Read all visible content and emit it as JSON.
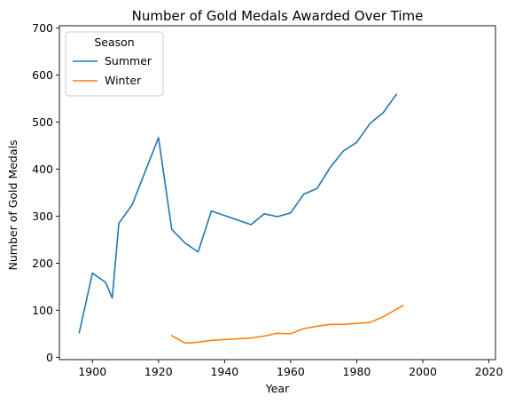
{
  "chart_data": {
    "type": "line",
    "title": "Number of Gold Medals Awarded Over Time",
    "xlabel": "Year",
    "ylabel": "Number of Gold Medals",
    "xlim": [
      1890,
      2022
    ],
    "ylim": [
      -5,
      705
    ],
    "xticks": [
      1900,
      1920,
      1940,
      1960,
      1980,
      2000,
      2020
    ],
    "yticks": [
      0,
      100,
      200,
      300,
      400,
      500,
      600,
      700
    ],
    "grid": false,
    "legend": {
      "title": "Season",
      "placement": "top-left"
    },
    "series": [
      {
        "name": "Summer",
        "color": "#1f77b4",
        "x": [
          1896,
          1900,
          1904,
          1906,
          1908,
          1912,
          1920,
          1924,
          1928,
          1932,
          1936,
          1948,
          1952,
          1956,
          1960,
          1964,
          1968,
          1972,
          1976,
          1980,
          1984,
          1988,
          1992
        ],
        "y": [
          52,
          179,
          159,
          126,
          285,
          324,
          467,
          272,
          243,
          224,
          311,
          282,
          305,
          299,
          307,
          347,
          359,
          404,
          439,
          457,
          497,
          520,
          559
        ]
      },
      {
        "name": "Winter",
        "color": "#ff7f0e",
        "x": [
          1924,
          1928,
          1932,
          1936,
          1948,
          1952,
          1956,
          1960,
          1964,
          1968,
          1972,
          1976,
          1980,
          1984,
          1988,
          1992,
          1994
        ],
        "y": [
          46,
          30,
          32,
          36,
          41,
          45,
          51,
          50,
          61,
          66,
          70,
          70,
          72,
          74,
          86,
          102,
          110
        ]
      }
    ]
  }
}
